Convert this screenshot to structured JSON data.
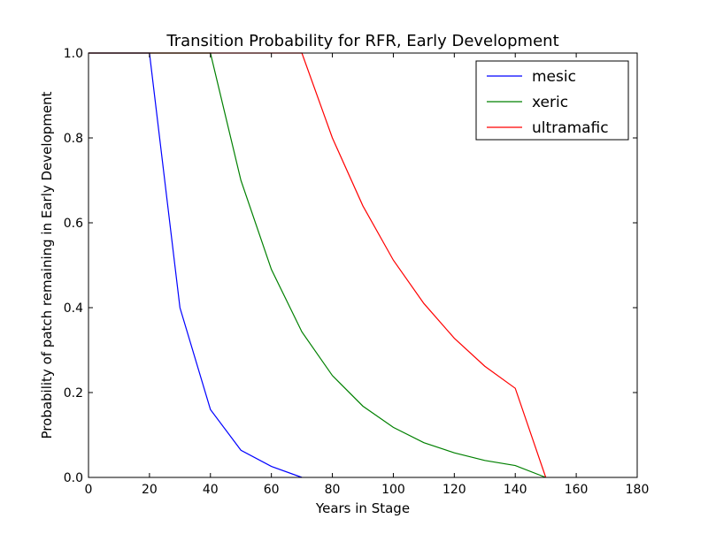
{
  "chart_data": {
    "type": "line",
    "title": "Transition Probability for RFR, Early Development",
    "xlabel": "Years in Stage",
    "ylabel": "Probability of patch remaining in Early Development",
    "xlim": [
      0,
      180
    ],
    "ylim": [
      0.0,
      1.0
    ],
    "xticks": [
      "0",
      "20",
      "40",
      "60",
      "80",
      "100",
      "120",
      "140",
      "160",
      "180"
    ],
    "yticks": [
      "0.0",
      "0.2",
      "0.4",
      "0.6",
      "0.8",
      "1.0"
    ],
    "grid": false,
    "legend_position": "top-right",
    "series": [
      {
        "name": "mesic",
        "color": "#0000ff",
        "x": [
          0,
          10,
          20,
          30,
          40,
          50,
          60,
          70
        ],
        "y": [
          1.0,
          1.0,
          1.0,
          0.4,
          0.16,
          0.064,
          0.026,
          0.0
        ]
      },
      {
        "name": "xeric",
        "color": "#008000",
        "x": [
          0,
          10,
          20,
          30,
          40,
          50,
          60,
          70,
          80,
          90,
          100,
          110,
          120,
          130,
          140,
          150
        ],
        "y": [
          1.0,
          1.0,
          1.0,
          1.0,
          1.0,
          0.7,
          0.49,
          0.343,
          0.24,
          0.168,
          0.118,
          0.082,
          0.058,
          0.04,
          0.028,
          0.0
        ]
      },
      {
        "name": "ultramafic",
        "color": "#ff0000",
        "x": [
          0,
          10,
          20,
          30,
          40,
          50,
          60,
          70,
          80,
          90,
          100,
          110,
          120,
          130,
          140,
          150
        ],
        "y": [
          1.0,
          1.0,
          1.0,
          1.0,
          1.0,
          1.0,
          1.0,
          1.0,
          0.8,
          0.64,
          0.512,
          0.41,
          0.328,
          0.262,
          0.21,
          0.0
        ]
      }
    ]
  }
}
